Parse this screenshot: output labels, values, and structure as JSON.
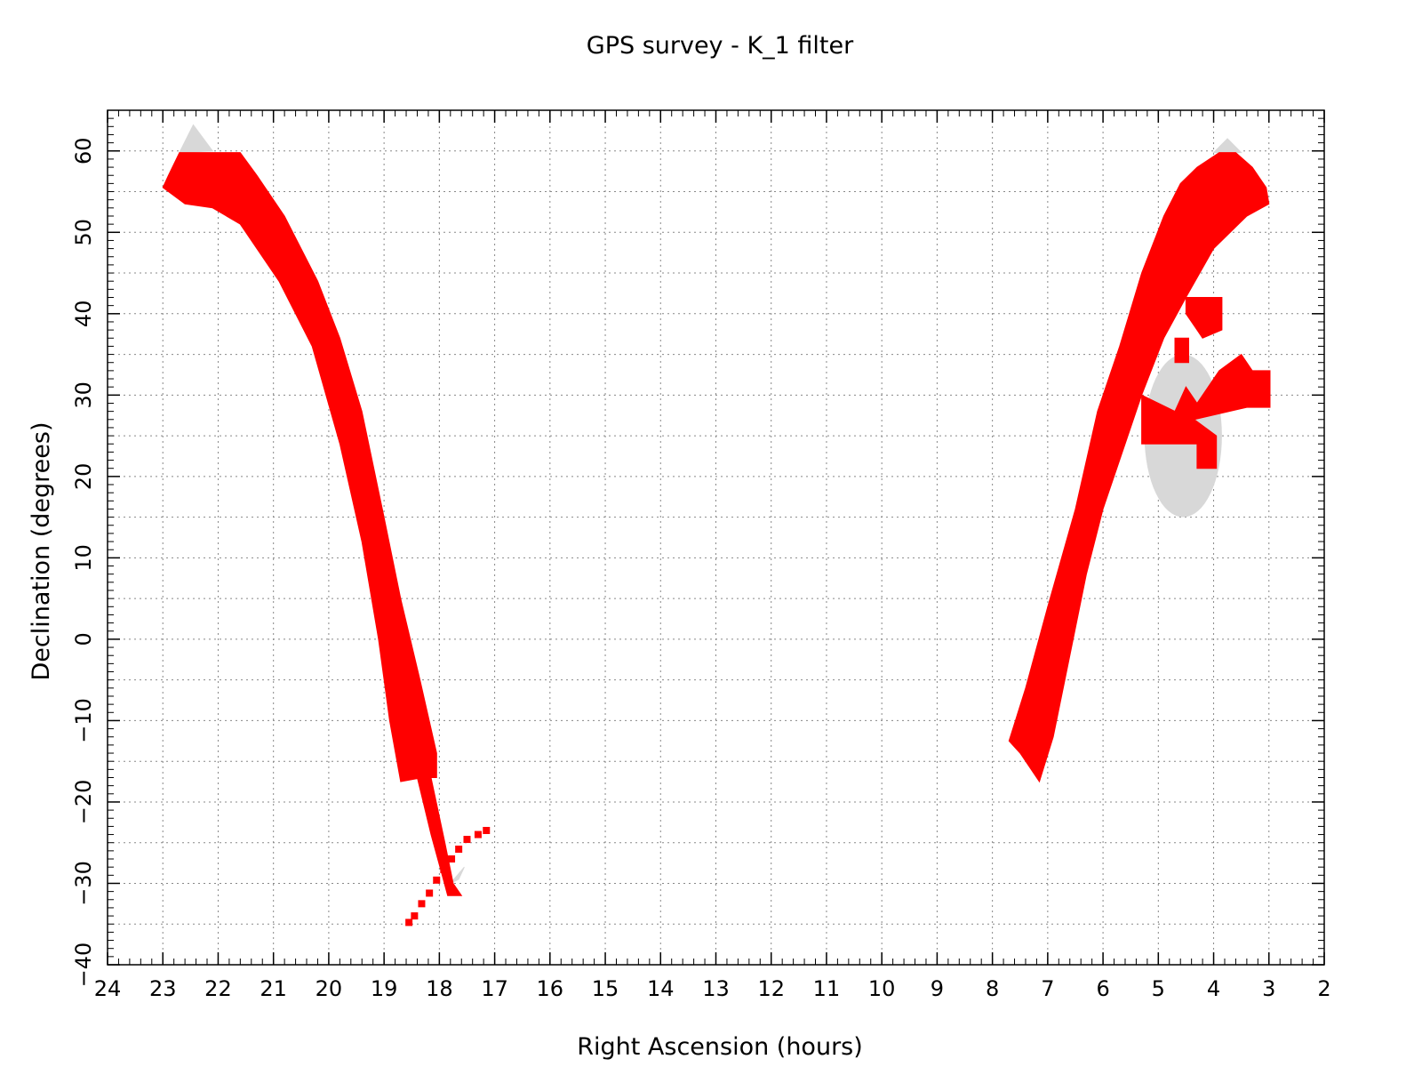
{
  "chart_data": {
    "type": "scatter",
    "title": "GPS survey - K_1 filter",
    "xlabel": "Right Ascension (hours)",
    "ylabel": "Declination (degrees)",
    "xlim": [
      24,
      2
    ],
    "ylim": [
      -40,
      65
    ],
    "x_inverted": true,
    "grid": true,
    "x_ticks": [
      24,
      23,
      22,
      21,
      20,
      19,
      18,
      17,
      16,
      15,
      14,
      13,
      12,
      11,
      10,
      9,
      8,
      7,
      6,
      5,
      4,
      3,
      2
    ],
    "y_ticks": [
      -40,
      -30,
      -20,
      -10,
      0,
      10,
      20,
      30,
      40,
      50,
      60
    ],
    "x_tick_labels": [
      "24",
      "23",
      "22",
      "21",
      "20",
      "19",
      "18",
      "17",
      "16",
      "15",
      "14",
      "13",
      "12",
      "11",
      "10",
      "9",
      "8",
      "7",
      "6",
      "5",
      "4",
      "3",
      "2"
    ],
    "y_tick_labels": [
      "−40",
      "−30",
      "−20",
      "−10",
      "0",
      "10",
      "20",
      "30",
      "40",
      "50",
      "60"
    ],
    "colors": {
      "coverage": "#ff0000",
      "plane": "#d8d8d8",
      "grid": "#888888"
    },
    "series": [
      {
        "color": "#ff0000",
        "regions": [
          {
            "points": [
              [
                23.0,
                55.5
              ],
              [
                22.9,
                57
              ],
              [
                22.7,
                59.8
              ],
              [
                21.6,
                59.8
              ],
              [
                21.3,
                57
              ],
              [
                20.8,
                52
              ],
              [
                20.2,
                44
              ],
              [
                19.8,
                37
              ],
              [
                19.4,
                28
              ],
              [
                19.0,
                15
              ],
              [
                18.7,
                5
              ],
              [
                18.35,
                -5
              ],
              [
                18.05,
                -14
              ],
              [
                18.05,
                -17
              ],
              [
                18.3,
                -17
              ],
              [
                18.7,
                -17.5
              ],
              [
                18.9,
                -10
              ],
              [
                19.1,
                0
              ],
              [
                19.4,
                12
              ],
              [
                19.8,
                24
              ],
              [
                20.3,
                36
              ],
              [
                20.9,
                44
              ],
              [
                21.6,
                51
              ],
              [
                22.1,
                53
              ],
              [
                22.6,
                53.5
              ]
            ]
          },
          {
            "points": [
              [
                18.4,
                -17
              ],
              [
                18.15,
                -17
              ],
              [
                17.9,
                -25
              ],
              [
                17.75,
                -30
              ],
              [
                17.6,
                -31.5
              ],
              [
                17.85,
                -31.5
              ],
              [
                17.95,
                -29
              ],
              [
                18.15,
                -24
              ]
            ]
          },
          {
            "points": [
              [
                7.7,
                -12.5
              ],
              [
                7.5,
                -14
              ],
              [
                7.15,
                -17.5
              ],
              [
                6.9,
                -12
              ],
              [
                6.6,
                -2
              ],
              [
                6.3,
                8
              ],
              [
                6.0,
                16
              ],
              [
                5.6,
                24
              ],
              [
                5.3,
                30
              ],
              [
                4.9,
                37
              ],
              [
                4.5,
                42
              ],
              [
                4.0,
                48
              ],
              [
                3.4,
                52
              ],
              [
                3.0,
                53.5
              ],
              [
                3.05,
                55.5
              ],
              [
                3.3,
                58
              ],
              [
                3.6,
                59.8
              ],
              [
                3.9,
                59.8
              ],
              [
                4.3,
                58
              ],
              [
                4.6,
                56
              ],
              [
                4.9,
                52
              ],
              [
                5.3,
                45
              ],
              [
                5.7,
                36
              ],
              [
                6.1,
                28
              ],
              [
                6.5,
                16
              ],
              [
                7.0,
                4
              ],
              [
                7.4,
                -6
              ]
            ]
          },
          {
            "points": [
              [
                5.3,
                30
              ],
              [
                5.3,
                24
              ],
              [
                4.3,
                24
              ],
              [
                4.3,
                21
              ],
              [
                3.95,
                21
              ],
              [
                3.95,
                25
              ],
              [
                4.35,
                27
              ],
              [
                3.4,
                28.5
              ],
              [
                2.98,
                28.5
              ],
              [
                2.98,
                33
              ],
              [
                3.3,
                33
              ],
              [
                3.5,
                35
              ],
              [
                3.9,
                33
              ],
              [
                4.3,
                29
              ],
              [
                4.5,
                31
              ],
              [
                4.7,
                28
              ]
            ]
          },
          {
            "points": [
              [
                4.5,
                40
              ],
              [
                4.5,
                42
              ],
              [
                3.85,
                42
              ],
              [
                3.85,
                38
              ],
              [
                4.2,
                37
              ],
              [
                4.3,
                38
              ]
            ]
          },
          {
            "points": [
              [
                4.7,
                37
              ],
              [
                4.7,
                34
              ],
              [
                4.45,
                34
              ],
              [
                4.45,
                37
              ]
            ]
          }
        ],
        "points": [
          [
            18.55,
            -34.8
          ],
          [
            18.45,
            -34
          ],
          [
            18.32,
            -32.5
          ],
          [
            18.18,
            -31.2
          ],
          [
            18.05,
            -29.6
          ],
          [
            17.92,
            -28.3
          ],
          [
            17.78,
            -27
          ],
          [
            17.65,
            -25.8
          ],
          [
            17.5,
            -24.6
          ],
          [
            17.3,
            -24
          ],
          [
            17.15,
            -23.5
          ]
        ]
      },
      {
        "color": "#d8d8d8",
        "regions": [
          {
            "points": [
              [
                22.45,
                63.2
              ],
              [
                22.1,
                60
              ],
              [
                22.7,
                59.8
              ]
            ]
          },
          {
            "points": [
              [
                3.75,
                61.5
              ],
              [
                4.0,
                59.8
              ],
              [
                3.5,
                59.8
              ]
            ]
          },
          {
            "points": [
              [
                17.8,
                -30
              ],
              [
                17.55,
                -28
              ],
              [
                17.65,
                -29.5
              ]
            ]
          }
        ],
        "ellipses": [
          {
            "center": [
              4.55,
              25
            ],
            "ra_radius": 0.7,
            "dec_radius": 10
          }
        ]
      }
    ]
  }
}
